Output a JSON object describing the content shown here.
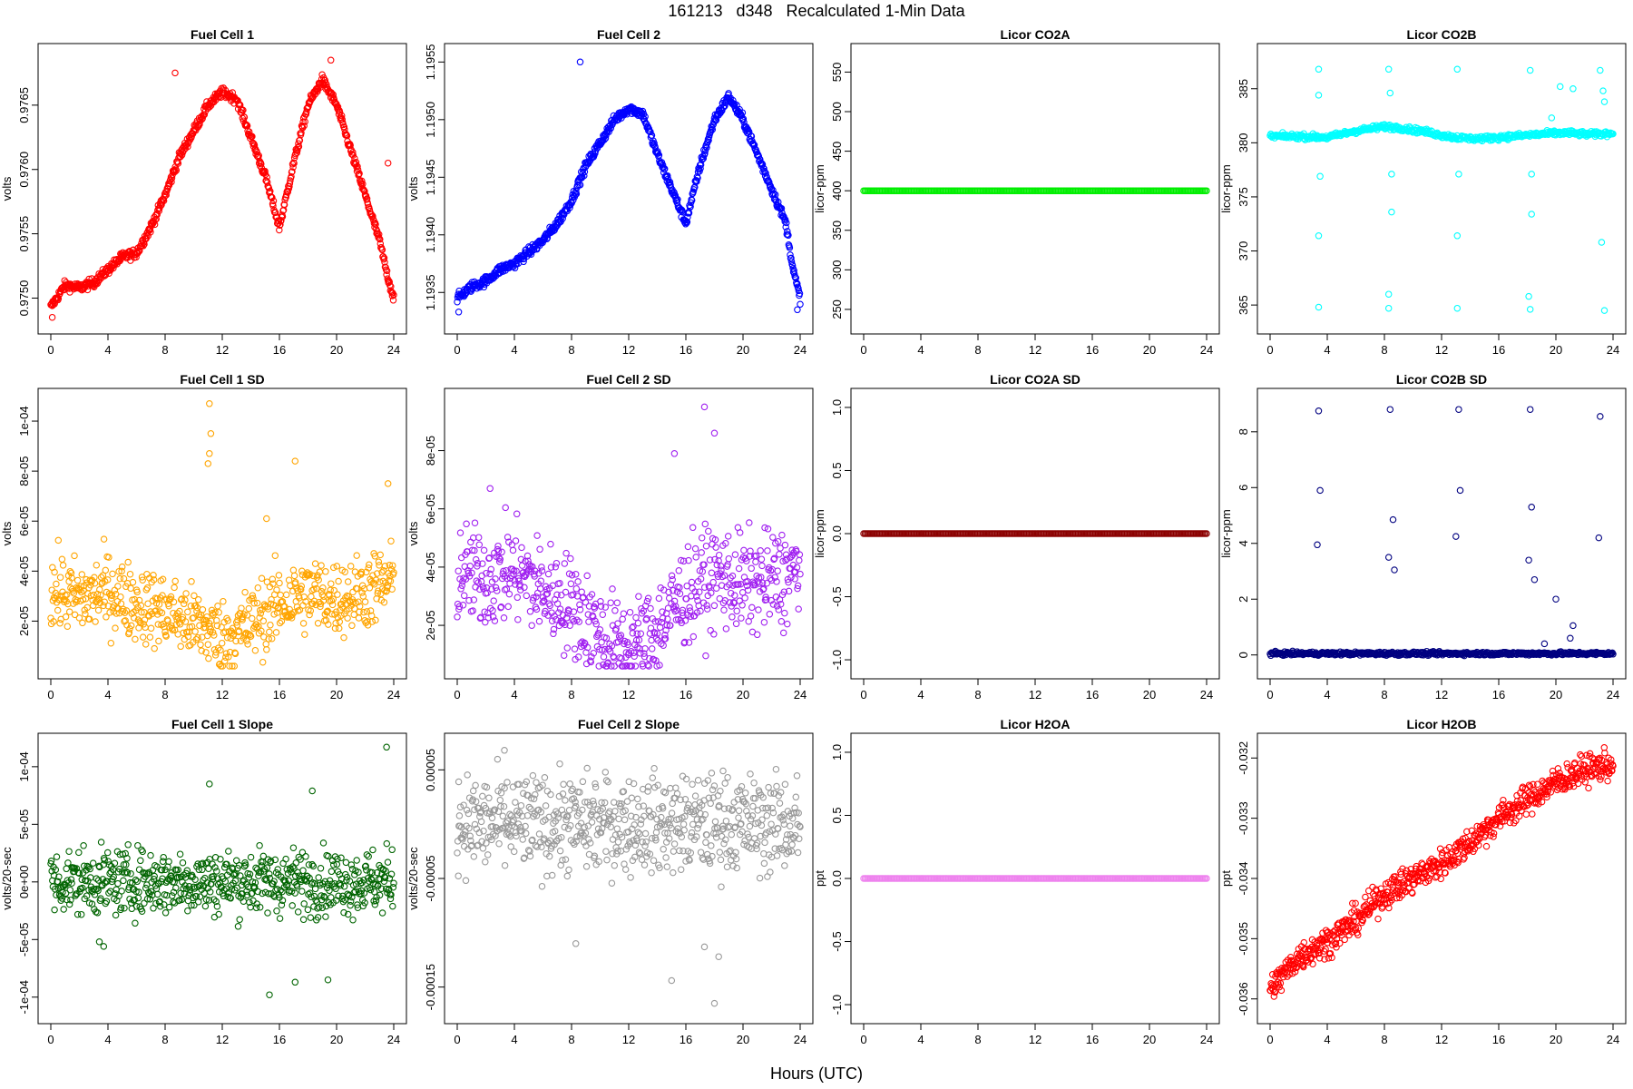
{
  "figure": {
    "title": "161213   d348   Recalculated 1-Min Data",
    "common_xlabel": "Hours (UTC)"
  },
  "chart_data": [
    {
      "type": "scatter",
      "title": "Fuel Cell 1",
      "ylabel": "volts",
      "color": "#ff0000",
      "xlim": [
        0,
        24
      ],
      "ylim": [
        0.97482,
        0.97688
      ],
      "xticks": [
        0,
        4,
        8,
        12,
        16,
        20,
        24
      ],
      "xtick_labels": [
        "0",
        "4",
        "8",
        "12",
        "16",
        "20",
        "24"
      ],
      "yticks": [
        0.975,
        0.9755,
        0.976,
        0.9765
      ],
      "ytick_labels": [
        "0.9750",
        "0.9755",
        "0.9760",
        "0.9765"
      ],
      "series": [
        {
          "x": [
            0,
            1,
            2,
            3,
            4,
            5,
            6,
            7,
            8,
            9,
            10,
            11,
            12,
            13,
            14,
            15,
            16,
            17,
            18,
            19,
            20,
            21,
            22,
            23,
            23.5,
            24
          ],
          "y": [
            0.97493,
            0.9751,
            0.97508,
            0.97512,
            0.97522,
            0.97532,
            0.97535,
            0.97555,
            0.9758,
            0.9761,
            0.9763,
            0.9765,
            0.9766,
            0.97655,
            0.97625,
            0.97595,
            0.97555,
            0.97605,
            0.9765,
            0.9767,
            0.9765,
            0.97615,
            0.9758,
            0.97545,
            0.9752,
            0.975
          ]
        }
      ],
      "anomalies": [
        {
          "x": 0.1,
          "y": 0.97485
        },
        {
          "x": 8.7,
          "y": 0.97675
        },
        {
          "x": 19.6,
          "y": 0.97685
        },
        {
          "x": 23.6,
          "y": 0.97605
        }
      ]
    },
    {
      "type": "scatter",
      "title": "Fuel Cell 2",
      "ylabel": "volts",
      "color": "#0000ff",
      "xlim": [
        0,
        24
      ],
      "ylim": [
        1.19325,
        1.19555
      ],
      "xticks": [
        0,
        4,
        8,
        12,
        16,
        20,
        24
      ],
      "xtick_labels": [
        "0",
        "4",
        "8",
        "12",
        "16",
        "20",
        "24"
      ],
      "yticks": [
        1.1935,
        1.194,
        1.1945,
        1.195,
        1.1955
      ],
      "ytick_labels": [
        "1.1935",
        "1.1940",
        "1.1945",
        "1.1950",
        "1.1955"
      ],
      "series": [
        {
          "x": [
            0,
            1,
            2,
            3,
            4,
            5,
            6,
            7,
            8,
            9,
            10,
            11,
            12,
            13,
            14,
            15,
            16,
            17,
            18,
            19,
            20,
            21,
            22,
            23,
            23.5,
            24
          ],
          "y": [
            1.19345,
            1.19355,
            1.1936,
            1.1937,
            1.19375,
            1.19385,
            1.19395,
            1.1941,
            1.1943,
            1.1946,
            1.1948,
            1.195,
            1.1951,
            1.19505,
            1.1947,
            1.1944,
            1.1941,
            1.1946,
            1.195,
            1.1952,
            1.195,
            1.1947,
            1.1944,
            1.1941,
            1.1937,
            1.19345
          ]
        }
      ],
      "anomalies": [
        {
          "x": 8.6,
          "y": 1.1955
        },
        {
          "x": 0.1,
          "y": 1.19333
        },
        {
          "x": 23.8,
          "y": 1.19335
        }
      ]
    },
    {
      "type": "scatter",
      "title": "Licor CO2A",
      "ylabel": "licor-ppm",
      "color": "#00ee00",
      "xlim": [
        0,
        24
      ],
      "ylim": [
        235,
        570
      ],
      "xticks": [
        0,
        4,
        8,
        12,
        16,
        20,
        24
      ],
      "xtick_labels": [
        "0",
        "4",
        "8",
        "12",
        "16",
        "20",
        "24"
      ],
      "yticks": [
        250,
        300,
        350,
        400,
        450,
        500,
        550
      ],
      "ytick_labels": [
        "250",
        "300",
        "350",
        "400",
        "450",
        "500",
        "550"
      ],
      "series": [
        {
          "x": [
            0,
            24
          ],
          "y": [
            400,
            400
          ]
        }
      ]
    },
    {
      "type": "scatter",
      "title": "Licor CO2B",
      "ylabel": "licor-ppm",
      "color": "#00ffff",
      "xlim": [
        0,
        24
      ],
      "ylim": [
        363.5,
        388
      ],
      "xticks": [
        0,
        4,
        8,
        12,
        16,
        20,
        24
      ],
      "xtick_labels": [
        "0",
        "4",
        "8",
        "12",
        "16",
        "20",
        "24"
      ],
      "yticks": [
        365,
        370,
        375,
        380,
        385
      ],
      "ytick_labels": [
        "365",
        "370",
        "375",
        "380",
        "385"
      ],
      "series": [
        {
          "x": [
            0,
            2,
            4,
            5,
            6,
            7,
            8,
            9,
            10,
            11,
            12,
            13,
            14,
            15,
            16,
            17,
            18,
            19,
            20,
            21,
            22,
            23,
            24
          ],
          "y": [
            380.6,
            380.6,
            380.5,
            380.8,
            381.1,
            381.3,
            381.5,
            381.4,
            381.2,
            381.0,
            380.7,
            380.5,
            380.4,
            380.4,
            380.5,
            380.6,
            380.7,
            380.8,
            380.9,
            380.9,
            380.8,
            380.8,
            380.9
          ]
        }
      ],
      "anomalies": [
        {
          "x": 3.4,
          "y": 386.8
        },
        {
          "x": 3.4,
          "y": 384.4
        },
        {
          "x": 3.5,
          "y": 376.9
        },
        {
          "x": 3.4,
          "y": 371.4
        },
        {
          "x": 3.4,
          "y": 364.8
        },
        {
          "x": 8.3,
          "y": 386.8
        },
        {
          "x": 8.4,
          "y": 384.6
        },
        {
          "x": 8.5,
          "y": 377.1
        },
        {
          "x": 8.5,
          "y": 373.6
        },
        {
          "x": 8.3,
          "y": 366.0
        },
        {
          "x": 8.3,
          "y": 364.7
        },
        {
          "x": 13.1,
          "y": 386.8
        },
        {
          "x": 13.2,
          "y": 377.1
        },
        {
          "x": 13.1,
          "y": 371.4
        },
        {
          "x": 13.1,
          "y": 364.7
        },
        {
          "x": 18.2,
          "y": 386.7
        },
        {
          "x": 18.3,
          "y": 377.1
        },
        {
          "x": 18.3,
          "y": 373.4
        },
        {
          "x": 18.1,
          "y": 365.8
        },
        {
          "x": 18.2,
          "y": 364.6
        },
        {
          "x": 19.7,
          "y": 382.3
        },
        {
          "x": 20.3,
          "y": 385.2
        },
        {
          "x": 21.2,
          "y": 385.0
        },
        {
          "x": 23.1,
          "y": 386.7
        },
        {
          "x": 23.3,
          "y": 384.8
        },
        {
          "x": 23.4,
          "y": 383.8
        },
        {
          "x": 23.2,
          "y": 370.8
        },
        {
          "x": 23.4,
          "y": 364.5
        }
      ]
    },
    {
      "type": "scatter",
      "title": "Fuel Cell 1 SD",
      "ylabel": "volts",
      "color": "#ffa500",
      "xlim": [
        0,
        24
      ],
      "ylim": [
        2e-06,
        0.000108
      ],
      "xticks": [
        0,
        4,
        8,
        12,
        16,
        20,
        24
      ],
      "xtick_labels": [
        "0",
        "4",
        "8",
        "12",
        "16",
        "20",
        "24"
      ],
      "yticks": [
        2e-05,
        4e-05,
        6e-05,
        8e-05,
        0.0001
      ],
      "ytick_labels": [
        "2e-05",
        "4e-05",
        "6e-05",
        "8e-05",
        "1e-04"
      ],
      "series": [
        {
          "x": [
            0,
            2,
            4,
            6,
            8,
            10,
            11,
            12,
            13,
            14,
            16,
            18,
            20,
            22,
            24
          ],
          "y": [
            3.2e-05,
            2.9e-05,
            3.2e-05,
            2.7e-05,
            2.4e-05,
            1.9e-05,
            1.7e-05,
            1.3e-05,
            1.5e-05,
            1.9e-05,
            2.7e-05,
            3.1e-05,
            2.9e-05,
            3.2e-05,
            3.6e-05
          ]
        }
      ],
      "anomalies": [
        {
          "x": 11.1,
          "y": 0.000107
        },
        {
          "x": 11.2,
          "y": 9.5e-05
        },
        {
          "x": 11.1,
          "y": 8.7e-05
        },
        {
          "x": 11.0,
          "y": 8.3e-05
        },
        {
          "x": 17.1,
          "y": 8.4e-05
        },
        {
          "x": 23.6,
          "y": 7.5e-05
        },
        {
          "x": 15.1,
          "y": 6.1e-05
        }
      ]
    },
    {
      "type": "scatter",
      "title": "Fuel Cell 2 SD",
      "ylabel": "volts",
      "color": "#a020f0",
      "xlim": [
        0,
        24
      ],
      "ylim": [
        6e-06,
        9.7e-05
      ],
      "xticks": [
        0,
        4,
        8,
        12,
        16,
        20,
        24
      ],
      "xtick_labels": [
        "0",
        "4",
        "8",
        "12",
        "16",
        "20",
        "24"
      ],
      "yticks": [
        2e-05,
        4e-05,
        6e-05,
        8e-05
      ],
      "ytick_labels": [
        "2e-05",
        "4e-05",
        "6e-05",
        "8e-05"
      ],
      "series": [
        {
          "x": [
            0,
            2,
            4,
            6,
            8,
            10,
            11,
            12,
            13,
            14,
            16,
            18,
            20,
            22,
            24
          ],
          "y": [
            3.8e-05,
            3.6e-05,
            3.9e-05,
            3.2e-05,
            2.7e-05,
            1.7e-05,
            1.3e-05,
            1.2e-05,
            1.4e-05,
            1.9e-05,
            3.1e-05,
            3.7e-05,
            3.4e-05,
            3.5e-05,
            3.9e-05
          ]
        }
      ],
      "anomalies": [
        {
          "x": 17.3,
          "y": 9.5e-05
        },
        {
          "x": 18.0,
          "y": 8.6e-05
        },
        {
          "x": 15.2,
          "y": 7.9e-05
        },
        {
          "x": 2.3,
          "y": 6.7e-05
        }
      ]
    },
    {
      "type": "scatter",
      "title": "Licor CO2A SD",
      "ylabel": "licor-ppm",
      "color": "#8b0000",
      "xlim": [
        0,
        24
      ],
      "ylim": [
        -1.05,
        1.05
      ],
      "xticks": [
        0,
        4,
        8,
        12,
        16,
        20,
        24
      ],
      "xtick_labels": [
        "0",
        "4",
        "8",
        "12",
        "16",
        "20",
        "24"
      ],
      "yticks": [
        -1.0,
        -0.5,
        0.0,
        0.5,
        1.0
      ],
      "ytick_labels": [
        "-1.0",
        "-0.5",
        "0.0",
        "0.5",
        "1.0"
      ],
      "series": [
        {
          "x": [
            0,
            24
          ],
          "y": [
            0,
            0
          ]
        }
      ]
    },
    {
      "type": "scatter",
      "title": "Licor CO2B SD",
      "ylabel": "licor-ppm",
      "color": "#000080",
      "xlim": [
        0,
        24
      ],
      "ylim": [
        -0.4,
        9.1
      ],
      "xticks": [
        0,
        4,
        8,
        12,
        16,
        20,
        24
      ],
      "xtick_labels": [
        "0",
        "4",
        "8",
        "12",
        "16",
        "20",
        "24"
      ],
      "yticks": [
        0,
        2,
        4,
        6,
        8
      ],
      "ytick_labels": [
        "0",
        "2",
        "4",
        "6",
        "8"
      ],
      "series": [
        {
          "x": [
            0,
            24
          ],
          "y": [
            0.05,
            0.05
          ]
        }
      ],
      "anomalies": [
        {
          "x": 3.4,
          "y": 8.75
        },
        {
          "x": 3.5,
          "y": 5.9
        },
        {
          "x": 3.3,
          "y": 3.95
        },
        {
          "x": 8.4,
          "y": 8.8
        },
        {
          "x": 8.6,
          "y": 4.85
        },
        {
          "x": 8.7,
          "y": 3.05
        },
        {
          "x": 8.3,
          "y": 3.5
        },
        {
          "x": 13.2,
          "y": 8.8
        },
        {
          "x": 13.3,
          "y": 5.9
        },
        {
          "x": 13.0,
          "y": 4.25
        },
        {
          "x": 18.2,
          "y": 8.8
        },
        {
          "x": 18.3,
          "y": 5.3
        },
        {
          "x": 18.1,
          "y": 3.4
        },
        {
          "x": 18.5,
          "y": 2.7
        },
        {
          "x": 20.0,
          "y": 2.0
        },
        {
          "x": 21.2,
          "y": 1.05
        },
        {
          "x": 23.1,
          "y": 8.55
        },
        {
          "x": 23.0,
          "y": 4.2
        },
        {
          "x": 21.0,
          "y": 0.6
        },
        {
          "x": 19.2,
          "y": 0.4
        }
      ]
    },
    {
      "type": "scatter",
      "title": "Fuel Cell 1 Slope",
      "ylabel": "volts/20-sec",
      "color": "#006400",
      "xlim": [
        0,
        24
      ],
      "ylim": [
        -0.000112,
        0.000118
      ],
      "xticks": [
        0,
        4,
        8,
        12,
        16,
        20,
        24
      ],
      "xtick_labels": [
        "0",
        "4",
        "8",
        "12",
        "16",
        "20",
        "24"
      ],
      "yticks": [
        -0.0001,
        -5e-05,
        0,
        5e-05,
        0.0001
      ],
      "ytick_labels": [
        "-1e-04",
        "-5e-05",
        "0e+00",
        "5e-05",
        "1e-04"
      ],
      "series": [
        {
          "x": [
            0,
            24
          ],
          "y": [
            0,
            0
          ]
        }
      ],
      "anomalies": [
        {
          "x": 23.5,
          "y": 0.000117
        },
        {
          "x": 11.1,
          "y": 8.5e-05
        },
        {
          "x": 18.3,
          "y": 7.9e-05
        },
        {
          "x": 15.3,
          "y": -9.8e-05
        },
        {
          "x": 17.1,
          "y": -8.7e-05
        },
        {
          "x": 19.4,
          "y": -8.5e-05
        },
        {
          "x": 3.4,
          "y": -5.2e-05
        },
        {
          "x": 3.7,
          "y": -5.6e-05
        }
      ]
    },
    {
      "type": "scatter",
      "title": "Fuel Cell 2 Slope",
      "ylabel": "volts/20-sec",
      "color": "#999999",
      "xlim": [
        0,
        24
      ],
      "ylim": [
        -0.000172,
        7.2e-05
      ],
      "xticks": [
        0,
        4,
        8,
        12,
        16,
        20,
        24
      ],
      "xtick_labels": [
        "0",
        "4",
        "8",
        "12",
        "16",
        "20",
        "24"
      ],
      "yticks": [
        -0.00015,
        -5e-05,
        5e-05
      ],
      "ytick_labels": [
        "-0.00015",
        "-0.00005",
        "0.00005"
      ],
      "series": [
        {
          "x": [
            0,
            24
          ],
          "y": [
            0,
            0
          ]
        }
      ],
      "anomalies": [
        {
          "x": 3.3,
          "y": 6.8e-05
        },
        {
          "x": 18.6,
          "y": 4.9e-05
        },
        {
          "x": 18.0,
          "y": -0.000165
        },
        {
          "x": 15.0,
          "y": -0.000144
        },
        {
          "x": 8.3,
          "y": -0.00011
        },
        {
          "x": 17.3,
          "y": -0.000113
        },
        {
          "x": 18.3,
          "y": -0.000122
        },
        {
          "x": 0.1,
          "y": 3.9e-05
        }
      ]
    },
    {
      "type": "scatter",
      "title": "Licor H2OA",
      "ylabel": "ppt",
      "color": "#ee82ee",
      "xlim": [
        0,
        24
      ],
      "ylim": [
        -1.05,
        1.05
      ],
      "xticks": [
        0,
        4,
        8,
        12,
        16,
        20,
        24
      ],
      "xtick_labels": [
        "0",
        "4",
        "8",
        "12",
        "16",
        "20",
        "24"
      ],
      "yticks": [
        -1.0,
        -0.5,
        0.0,
        0.5,
        1.0
      ],
      "ytick_labels": [
        "-1.0",
        "-0.5",
        "0.0",
        "0.5",
        "1.0"
      ],
      "series": [
        {
          "x": [
            0,
            24
          ],
          "y": [
            0,
            0
          ]
        }
      ]
    },
    {
      "type": "scatter",
      "title": "Licor H2OB",
      "ylabel": "ppt",
      "color": "#ff0000",
      "xlim": [
        0,
        24
      ],
      "ylim": [
        -0.0362,
        -0.0318
      ],
      "xticks": [
        0,
        4,
        8,
        12,
        16,
        20,
        24
      ],
      "xtick_labels": [
        "0",
        "4",
        "8",
        "12",
        "16",
        "20",
        "24"
      ],
      "yticks": [
        -0.036,
        -0.035,
        -0.034,
        -0.033,
        -0.032
      ],
      "ytick_labels": [
        "-0.036",
        "-0.035",
        "-0.034",
        "-0.033",
        "-0.032"
      ],
      "series": [
        {
          "x": [
            0,
            2,
            4,
            6,
            8,
            10,
            12,
            14,
            16,
            18,
            20,
            22,
            24
          ],
          "y": [
            -0.03585,
            -0.0353,
            -0.03505,
            -0.0347,
            -0.03425,
            -0.034,
            -0.03375,
            -0.0334,
            -0.033,
            -0.0327,
            -0.0324,
            -0.0322,
            -0.0321
          ]
        }
      ]
    }
  ]
}
